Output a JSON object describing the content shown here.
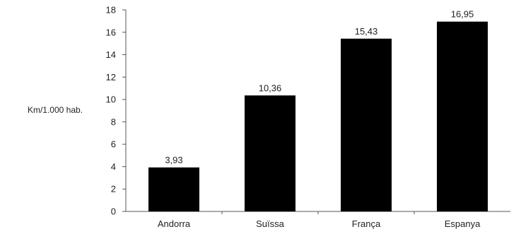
{
  "chart_data": {
    "type": "bar",
    "categories": [
      "Andorra",
      "Suïssa",
      "França",
      "Espanya"
    ],
    "values": [
      3.93,
      10.36,
      15.43,
      16.95
    ],
    "value_labels": [
      "3,93",
      "10,36",
      "15,43",
      "16,95"
    ],
    "title": "",
    "xlabel": "",
    "ylabel": "Km/1.000 hab.",
    "ylim": [
      0,
      18
    ],
    "yticks": [
      0,
      2,
      4,
      6,
      8,
      10,
      12,
      14,
      16,
      18
    ],
    "grid": false,
    "bar_color": "#000000"
  }
}
